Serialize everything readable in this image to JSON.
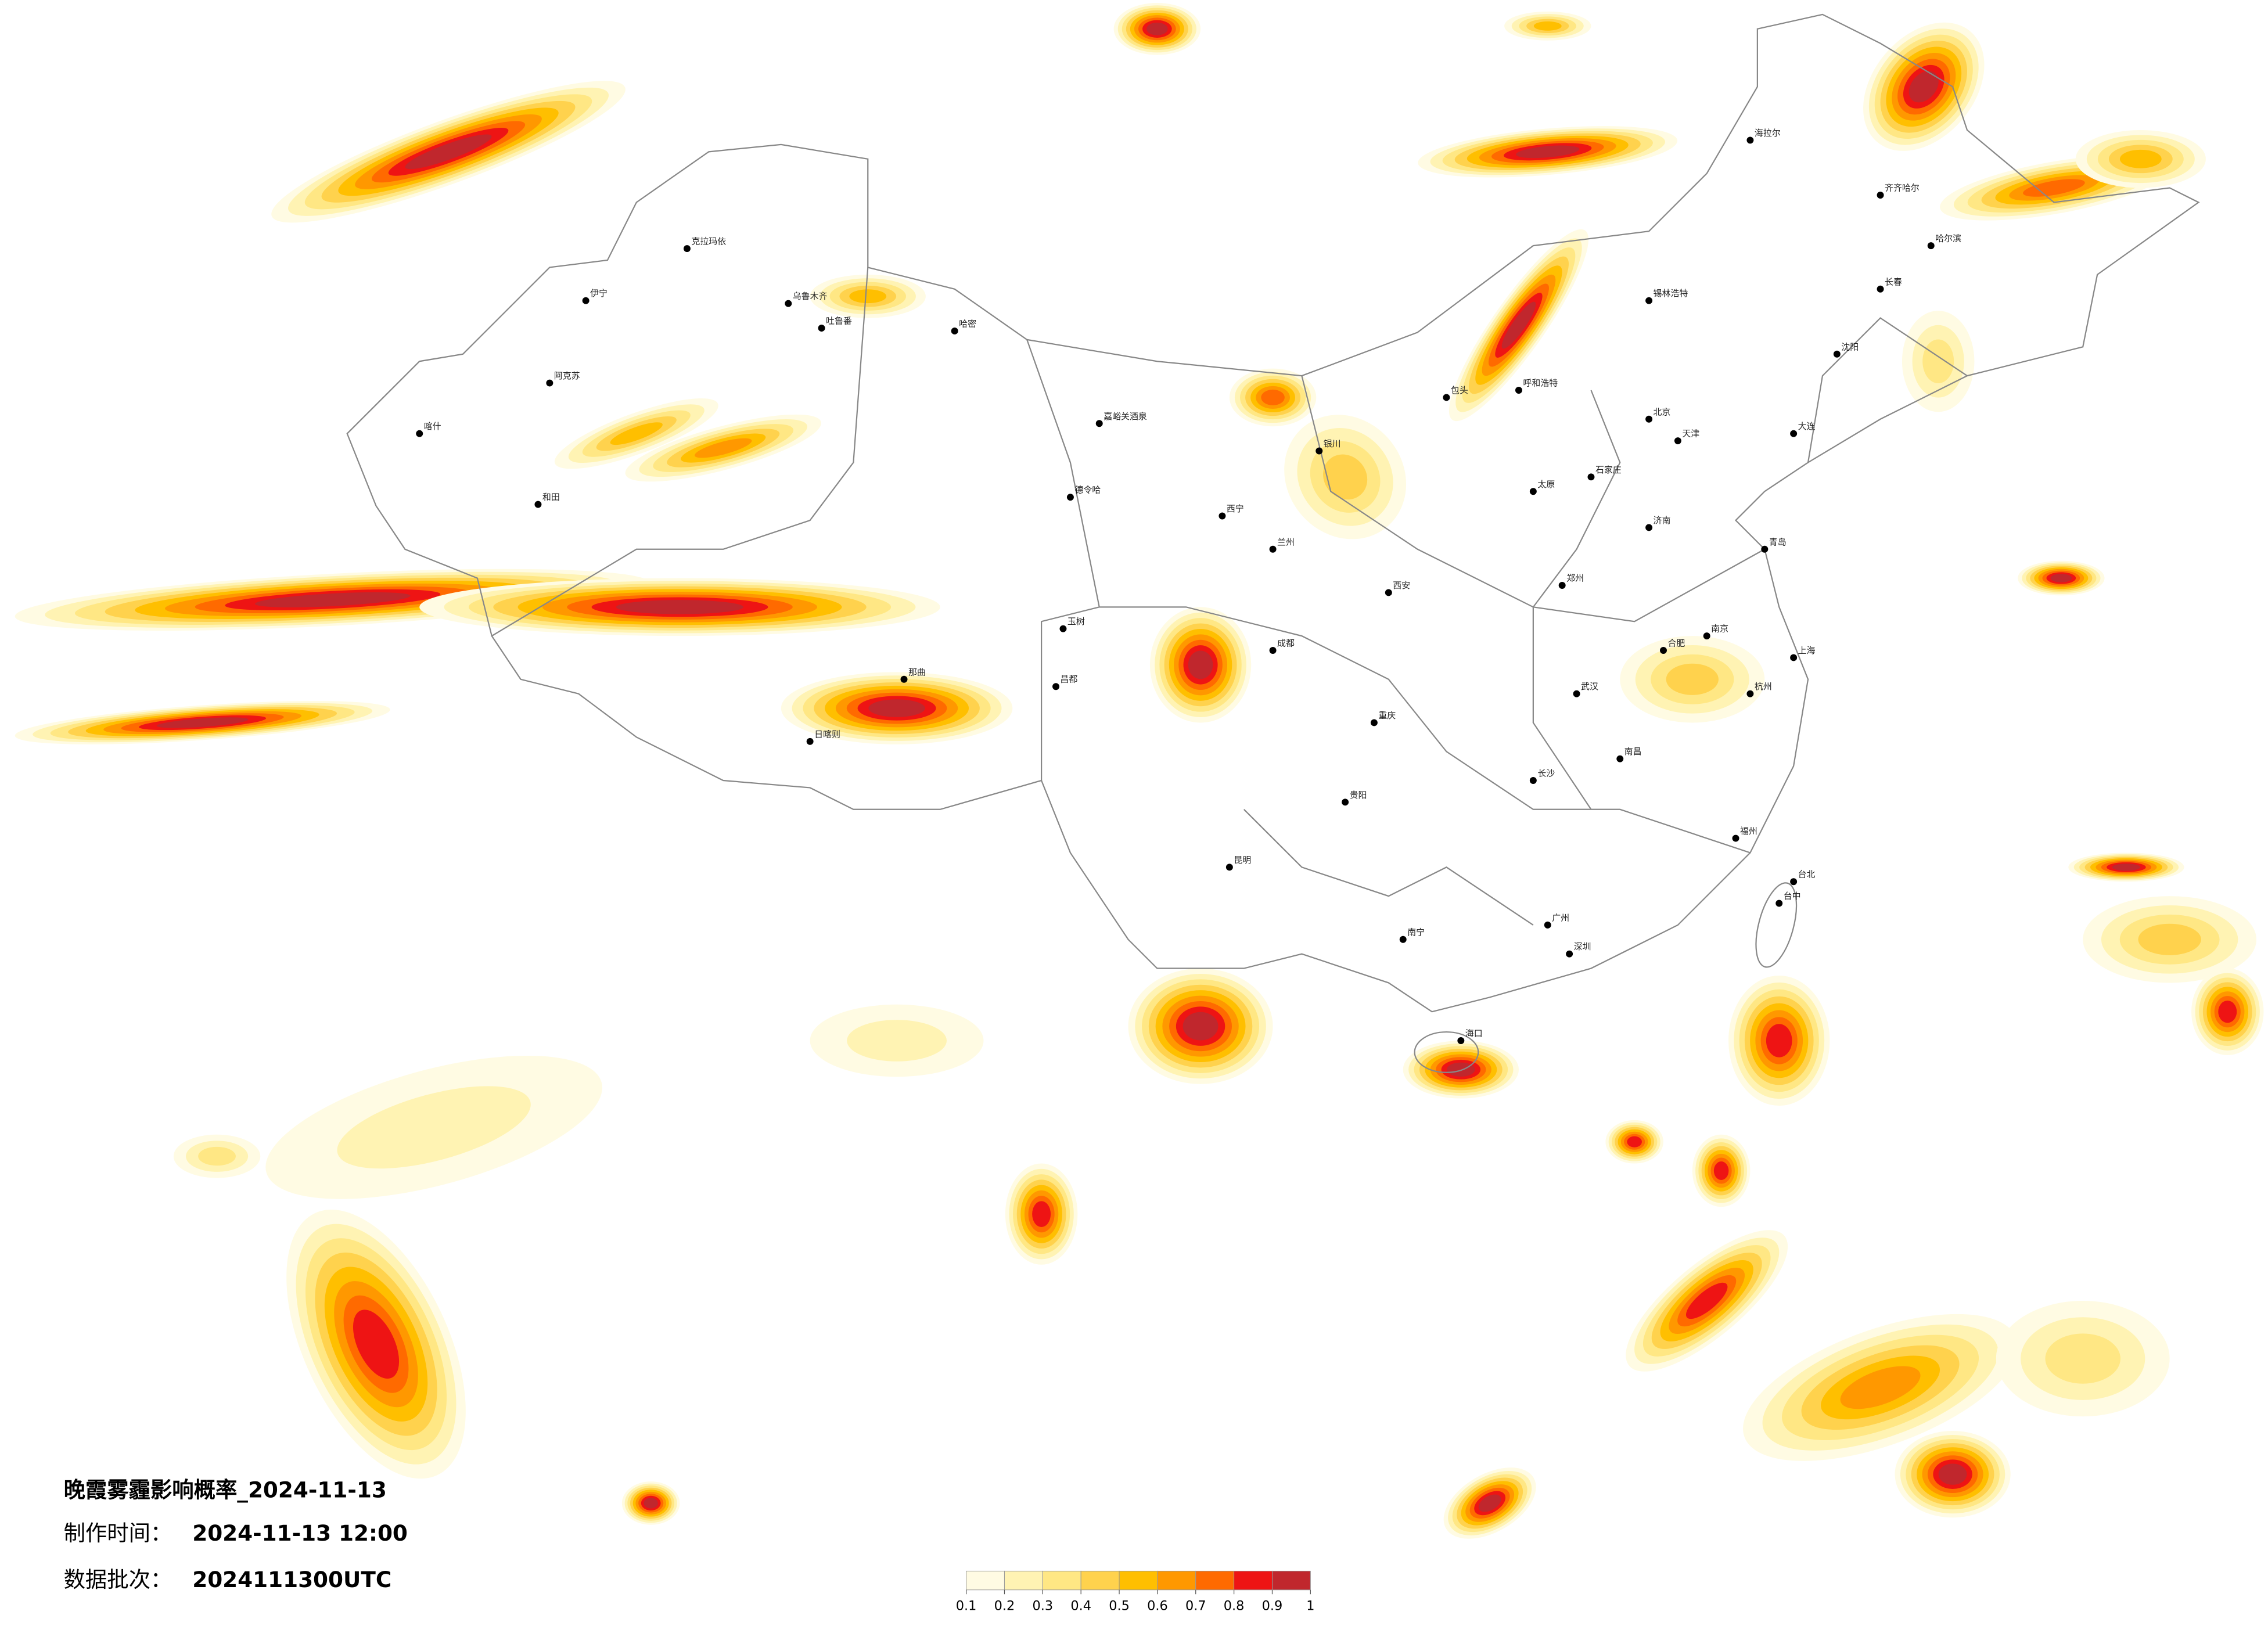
{
  "header": {
    "title": "晚霞雾霾影响概率_2024-11-13",
    "made_label": "制作时间：",
    "made_time": "2024-11-13 12:00",
    "batch_label": "数据批次：",
    "batch": "2024111300UTC"
  },
  "legend": {
    "colors": [
      "#fffbe3",
      "#fff3b3",
      "#ffe784",
      "#ffd24d",
      "#ffbf00",
      "#ff9800",
      "#ff6a00",
      "#ee1414",
      "#c0272d"
    ],
    "ticks": [
      0.1,
      0.2,
      0.3,
      0.4,
      0.5,
      0.6,
      0.7,
      0.8,
      0.9,
      1
    ]
  },
  "cities": [
    "克拉玛依",
    "乌鲁木齐",
    "伊宁",
    "阿克苏",
    "和田",
    "喀什",
    "吐鲁番",
    "哈密",
    "嘉峪关酒泉",
    "德令哈",
    "日喀则",
    "那曲",
    "玉树",
    "昌都",
    "西宁",
    "兰州",
    "银川",
    "呼和浩特",
    "包头",
    "太原",
    "石家庄",
    "北京",
    "天津",
    "济南",
    "郑州",
    "西安",
    "成都",
    "重庆",
    "武汉",
    "长沙",
    "南昌",
    "合肥",
    "南京",
    "上海",
    "杭州",
    "福州",
    "广州",
    "深圳",
    "南宁",
    "海口",
    "昆明",
    "贵阳",
    "台北",
    "台中",
    "哈尔滨",
    "长春",
    "沈阳",
    "大连",
    "齐齐哈尔",
    "海拉尔",
    "锡林浩特",
    "青岛"
  ]
}
